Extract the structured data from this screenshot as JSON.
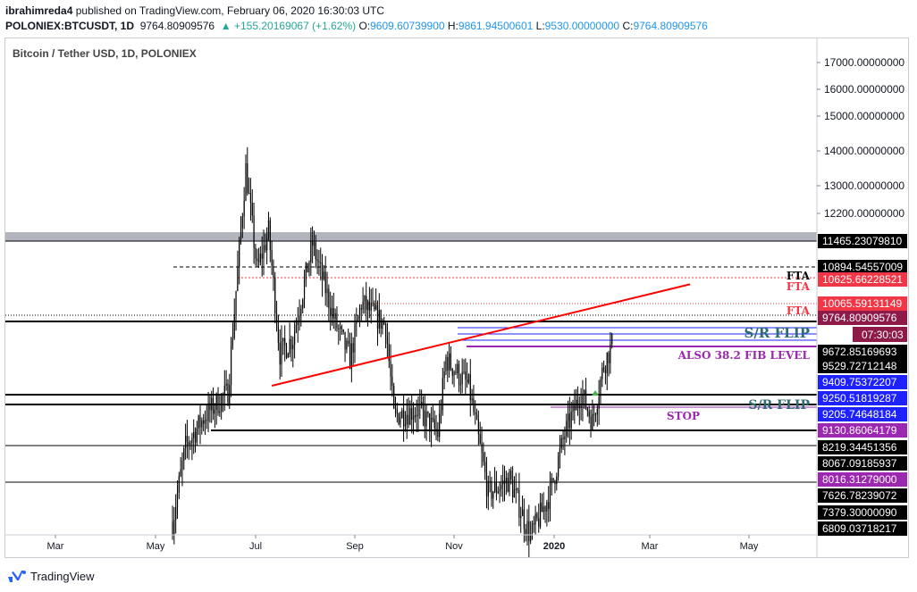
{
  "header": {
    "publisher": "ibrahimreda4",
    "published_text": "published on TradingView.com, February 06, 2020 16:30:03 UTC",
    "symbol": "POLONIEX:BTCUSDT, 1D",
    "last": "9764.80909576",
    "change": "▲ +155.20169067 (+1.62%)",
    "o_label": "O:",
    "o": "9609.60739900",
    "h_label": "H:",
    "h": "9861.94500601",
    "l_label": "L:",
    "l": "9530.00000000",
    "c_label": "C:",
    "c": "9764.80909576"
  },
  "series_title": "Bitcoin / Tether USD, 1D, POLONIEX",
  "footer": {
    "brand": "TradingView"
  },
  "colors": {
    "candle": "#000000",
    "trendline": "#ff0000",
    "zone": "#b2b5be",
    "purple": "#9c27b0",
    "blue": "#1e22ff",
    "teal": "#2e6b74",
    "red_level": "#f23645"
  },
  "chart_data": {
    "type": "candlestick",
    "symbol": "BTCUSDT",
    "timeframe": "1D",
    "x_axis_labels": [
      "Mar",
      "May",
      "Jul",
      "Sep",
      "Nov",
      "2020",
      "Mar",
      "May"
    ],
    "y_ticks": [
      "17000.00000000",
      "16000.00000000",
      "15000.00000000",
      "14000.00000000",
      "13000.00000000",
      "12200.00000000"
    ],
    "ylim": [
      6809,
      17600
    ],
    "y_scale": "log",
    "price_anchors": [
      {
        "date": "2019-05-12",
        "price": 6900
      },
      {
        "date": "2019-05-20",
        "price": 8000
      },
      {
        "date": "2019-06-01",
        "price": 8500
      },
      {
        "date": "2019-06-15",
        "price": 8900
      },
      {
        "date": "2019-06-26",
        "price": 13800
      },
      {
        "date": "2019-07-03",
        "price": 11300
      },
      {
        "date": "2019-07-10",
        "price": 12200
      },
      {
        "date": "2019-07-17",
        "price": 9600
      },
      {
        "date": "2019-07-25",
        "price": 9900
      },
      {
        "date": "2019-08-06",
        "price": 11900
      },
      {
        "date": "2019-08-20",
        "price": 10200
      },
      {
        "date": "2019-08-29",
        "price": 9500
      },
      {
        "date": "2019-09-05",
        "price": 10600
      },
      {
        "date": "2019-09-20",
        "price": 10150
      },
      {
        "date": "2019-09-25",
        "price": 8500
      },
      {
        "date": "2019-10-10",
        "price": 8600
      },
      {
        "date": "2019-10-22",
        "price": 8200
      },
      {
        "date": "2019-10-27",
        "price": 9500
      },
      {
        "date": "2019-11-10",
        "price": 9000
      },
      {
        "date": "2019-11-22",
        "price": 7300
      },
      {
        "date": "2019-12-05",
        "price": 7500
      },
      {
        "date": "2019-12-18",
        "price": 6700
      },
      {
        "date": "2019-12-30",
        "price": 7300
      },
      {
        "date": "2020-01-08",
        "price": 8200
      },
      {
        "date": "2020-01-18",
        "price": 8900
      },
      {
        "date": "2020-01-25",
        "price": 8400
      },
      {
        "date": "2020-02-01",
        "price": 9400
      },
      {
        "date": "2020-02-06",
        "price": 9764.81
      }
    ],
    "levels": [
      {
        "label": "11465.23079810",
        "price": 11465.23,
        "bg": "#000000",
        "fg": "#ffffff",
        "line": "#000000",
        "dash": false
      },
      {
        "label": "10894.54557009",
        "price": 10894.55,
        "bg": "#000000",
        "fg": "#ffffff",
        "line": "#000000",
        "dash": true
      },
      {
        "label": "10625.66228521",
        "price": 10625.66,
        "bg": "#f23645",
        "fg": "#ffffff",
        "line": "#f23645",
        "dash": true
      },
      {
        "label": "10065.59131149",
        "price": 10065.59,
        "bg": "#f23645",
        "fg": "#ffffff",
        "line": "#f23645",
        "dash": true
      },
      {
        "label": "9764.80909576",
        "price": 9764.81,
        "bg": "#8e1a47",
        "fg": "#ffffff",
        "line": "#000000",
        "dash": false
      },
      {
        "label": "9672.85169693",
        "price": 9672.85,
        "bg": "#000000",
        "fg": "#ffffff",
        "line": "#1e22ff",
        "dash": false
      },
      {
        "label": "9529.72712148",
        "price": 9529.73,
        "bg": "#000000",
        "fg": "#ffffff",
        "line": "#9c27b0",
        "dash": false
      },
      {
        "label": "9409.75372207",
        "price": 9409.75,
        "bg": "#1e22ff",
        "fg": "#ffffff",
        "line": "#000000",
        "dash": false
      },
      {
        "label": "9250.51819287",
        "price": 9250.52,
        "bg": "#1e22ff",
        "fg": "#ffffff",
        "line": "#000000",
        "dash": false
      },
      {
        "label": "9205.74648184",
        "price": 9205.75,
        "bg": "#1e22ff",
        "fg": "#ffffff",
        "line": "#9c27b0",
        "dash": false
      },
      {
        "label": "9130.86064179",
        "price": 9130.86,
        "bg": "#9c27b0",
        "fg": "#ffffff",
        "line": "#000000",
        "dash": false
      },
      {
        "label": "8219.34451356",
        "price": 8219.34,
        "bg": "#000000",
        "fg": "#ffffff",
        "line": "#000000",
        "dash": false
      },
      {
        "label": "8067.09185937",
        "price": 8067.09,
        "bg": "#000000",
        "fg": "#ffffff",
        "line": "#000000",
        "dash": false
      },
      {
        "label": "8016.31279000",
        "price": 8016.31,
        "bg": "#9c27b0",
        "fg": "#ffffff",
        "line": "#000000",
        "dash": false
      },
      {
        "label": "7626.78239072",
        "price": 7626.78,
        "bg": "#000000",
        "fg": "#ffffff",
        "line": "#000000",
        "dash": false
      },
      {
        "label": "7379.30000090",
        "price": 7379.3,
        "bg": "#000000",
        "fg": "#ffffff",
        "line": "#000000",
        "dash": false
      },
      {
        "label": "6809.03718217",
        "price": 6809.04,
        "bg": "#000000",
        "fg": "#ffffff",
        "line": "#000000",
        "dash": false
      }
    ],
    "countdown": "07:30:03",
    "annotations": [
      {
        "text": "FTA",
        "color": "#000000"
      },
      {
        "text": "FTA",
        "color": "#f23645"
      },
      {
        "text": "FTA",
        "color": "#f23645"
      },
      {
        "text": "S/R FLIP",
        "color": "#2e6b74"
      },
      {
        "text": "ALSO 38.2 FIB LEVEL",
        "color": "#9c27b0"
      },
      {
        "text": "S/R FLIP",
        "color": "#2e6b74"
      },
      {
        "text": "STOP",
        "color": "#9c27b0"
      }
    ],
    "trendline": {
      "from": {
        "date": "2019-07-12",
        "price": 9500
      },
      "to": {
        "date": "2020-03-25",
        "price": 11000
      }
    }
  }
}
